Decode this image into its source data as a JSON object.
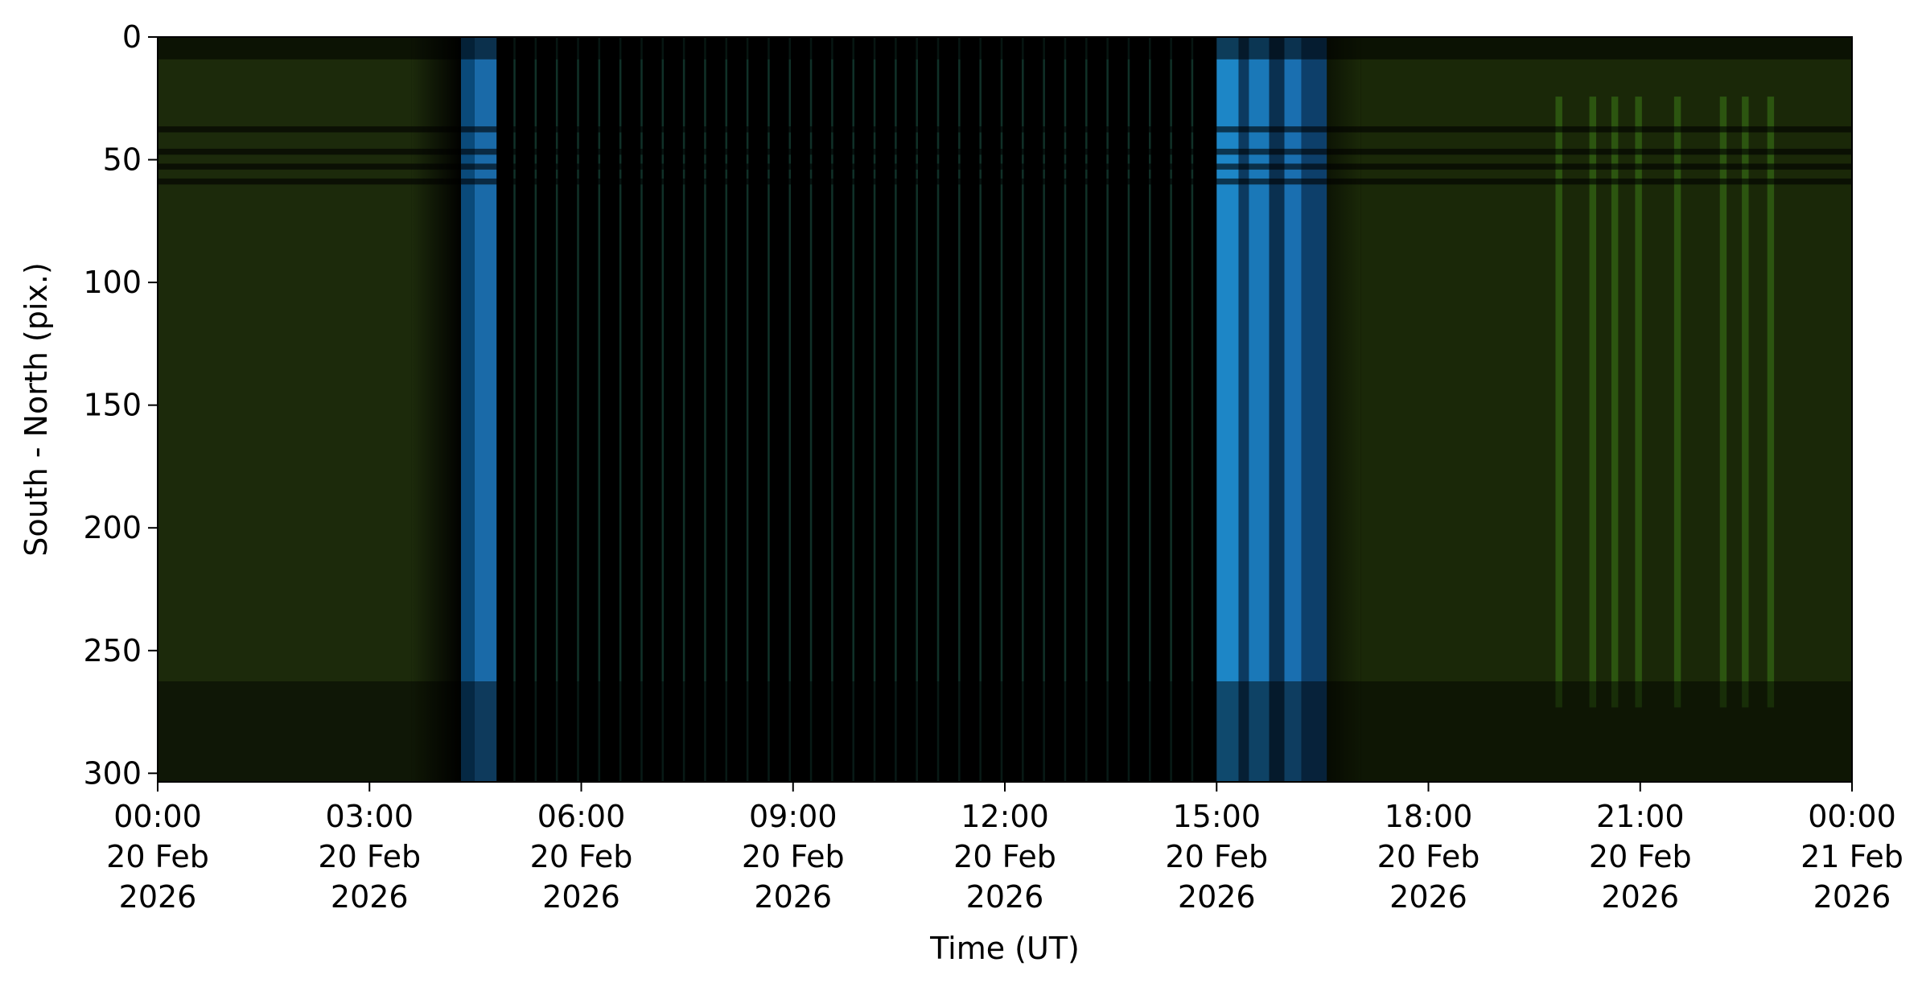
{
  "chart_data": {
    "type": "keogram",
    "x_label": "Time (UT)",
    "y_label": "South - North (pix.)",
    "xlim": [
      "2026-02-20T00:00",
      "2026-02-21T00:00"
    ],
    "xticks": [
      {
        "value": "2026-02-20T00:00",
        "label": [
          "00:00",
          "20 Feb",
          "2026"
        ]
      },
      {
        "value": "2026-02-20T03:00",
        "label": [
          "03:00",
          "20 Feb",
          "2026"
        ]
      },
      {
        "value": "2026-02-20T06:00",
        "label": [
          "06:00",
          "20 Feb",
          "2026"
        ]
      },
      {
        "value": "2026-02-20T09:00",
        "label": [
          "09:00",
          "20 Feb",
          "2026"
        ]
      },
      {
        "value": "2026-02-20T12:00",
        "label": [
          "12:00",
          "20 Feb",
          "2026"
        ]
      },
      {
        "value": "2026-02-20T15:00",
        "label": [
          "15:00",
          "20 Feb",
          "2026"
        ]
      },
      {
        "value": "2026-02-20T18:00",
        "label": [
          "18:00",
          "20 Feb",
          "2026"
        ]
      },
      {
        "value": "2026-02-20T21:00",
        "label": [
          "21:00",
          "20 Feb",
          "2026"
        ]
      },
      {
        "value": "2026-02-21T00:00",
        "label": [
          "00:00",
          "21 Feb",
          "2026"
        ]
      }
    ],
    "ylim": [
      303.5,
      0
    ],
    "yticks": [
      0,
      50,
      100,
      150,
      200,
      250,
      300
    ]
  }
}
